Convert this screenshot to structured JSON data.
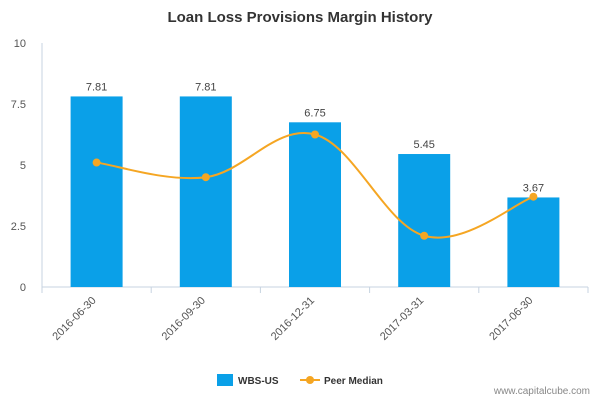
{
  "chart_data": {
    "type": "bar",
    "title": "Loan Loss Provisions Margin History",
    "categories": [
      "2016-06-30",
      "2016-09-30",
      "2016-12-31",
      "2017-03-31",
      "2017-06-30"
    ],
    "ylim": [
      0,
      10
    ],
    "yticks": [
      "0",
      "2.5",
      "5",
      "7.5",
      "10"
    ],
    "ytick_values": [
      0,
      2.5,
      5,
      7.5,
      10
    ],
    "grid": false,
    "legend_position": "bottom-center",
    "series": [
      {
        "name": "WBS-US",
        "kind": "bar",
        "color": "#0aa0e8",
        "values": [
          7.81,
          7.81,
          6.75,
          5.45,
          3.67
        ],
        "labels": [
          "7.81",
          "7.81",
          "6.75",
          "5.45",
          "3.67"
        ]
      },
      {
        "name": "Peer Median",
        "kind": "line",
        "color": "#f5a623",
        "values": [
          5.1,
          4.5,
          6.25,
          2.1,
          3.7
        ]
      }
    ]
  },
  "credit": "www.capitalcube.com"
}
